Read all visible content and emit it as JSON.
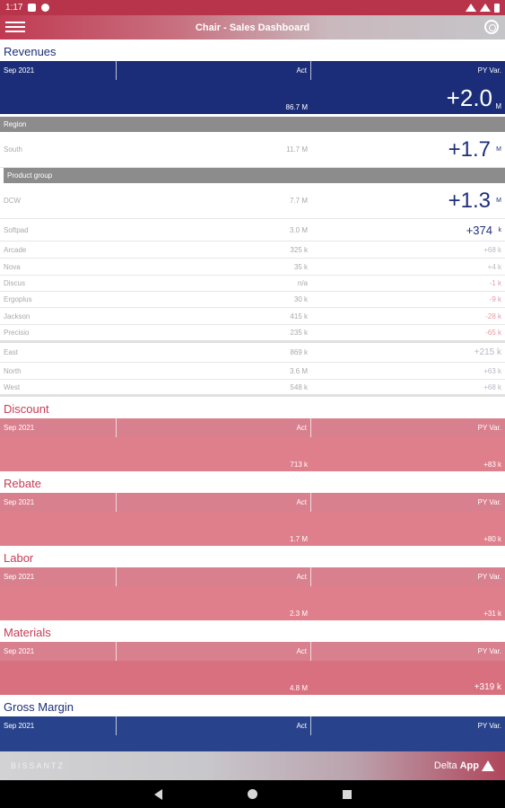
{
  "status_bar": {
    "time": "1:17"
  },
  "app_bar": {
    "title": "Chair - Sales Dashboard"
  },
  "revenues": {
    "title": "Revenues",
    "header": {
      "period": "Sep 2021",
      "act_label": "Act",
      "var_label": "PY Var."
    },
    "total": {
      "act": "86.7 M",
      "var": "+2.0",
      "unit": "M"
    },
    "region_label": "Region",
    "south": {
      "name": "South",
      "act": "11.7 M",
      "var": "+1.7",
      "unit": "M"
    },
    "product_group_label": "Product group",
    "products": [
      {
        "name": "DCW",
        "act": "7.7 M",
        "var": "+1.3",
        "unit": "M"
      },
      {
        "name": "Softpad",
        "act": "3.0 M",
        "var": "+374",
        "unit": "k"
      },
      {
        "name": "Arcade",
        "act": "325 k",
        "var": "+68 k"
      },
      {
        "name": "Nova",
        "act": "35 k",
        "var": "+4 k"
      },
      {
        "name": "Discus",
        "act": "n/a",
        "var": "-1 k"
      },
      {
        "name": "Ergoplus",
        "act": "30 k",
        "var": "-9 k"
      },
      {
        "name": "Jackson",
        "act": "415 k",
        "var": "-28 k"
      },
      {
        "name": "Precisio",
        "act": "235 k",
        "var": "-65 k"
      }
    ],
    "regions": [
      {
        "name": "East",
        "act": "869 k",
        "var": "+215 k"
      },
      {
        "name": "North",
        "act": "3.6 M",
        "var": "+63 k"
      },
      {
        "name": "West",
        "act": "548 k",
        "var": "+68 k"
      }
    ]
  },
  "discount": {
    "title": "Discount",
    "period": "Sep 2021",
    "act_label": "Act",
    "var_label": "PY Var.",
    "act": "713 k",
    "var": "+83 k"
  },
  "rebate": {
    "title": "Rebate",
    "period": "Sep 2021",
    "act_label": "Act",
    "var_label": "PY Var.",
    "act": "1.7 M",
    "var": "+80 k"
  },
  "labor": {
    "title": "Labor",
    "period": "Sep 2021",
    "act_label": "Act",
    "var_label": "PY Var.",
    "act": "2.3 M",
    "var": "+31 k"
  },
  "materials": {
    "title": "Materials",
    "period": "Sep 2021",
    "act_label": "Act",
    "var_label": "PY Var.",
    "act": "4.8 M",
    "var": "+319 k"
  },
  "gross_margin": {
    "title": "Gross Margin",
    "period": "Sep 2021",
    "act_label": "Act",
    "var_label": "PY Var."
  },
  "footer": {
    "brand": "BISSANTZ",
    "app_prefix": "Delta",
    "app_suffix": "App"
  },
  "colors": {
    "navy": "#1b2d79",
    "red": "#c63c55",
    "pink": "#d9808e",
    "gray": "#8c8c8c"
  }
}
